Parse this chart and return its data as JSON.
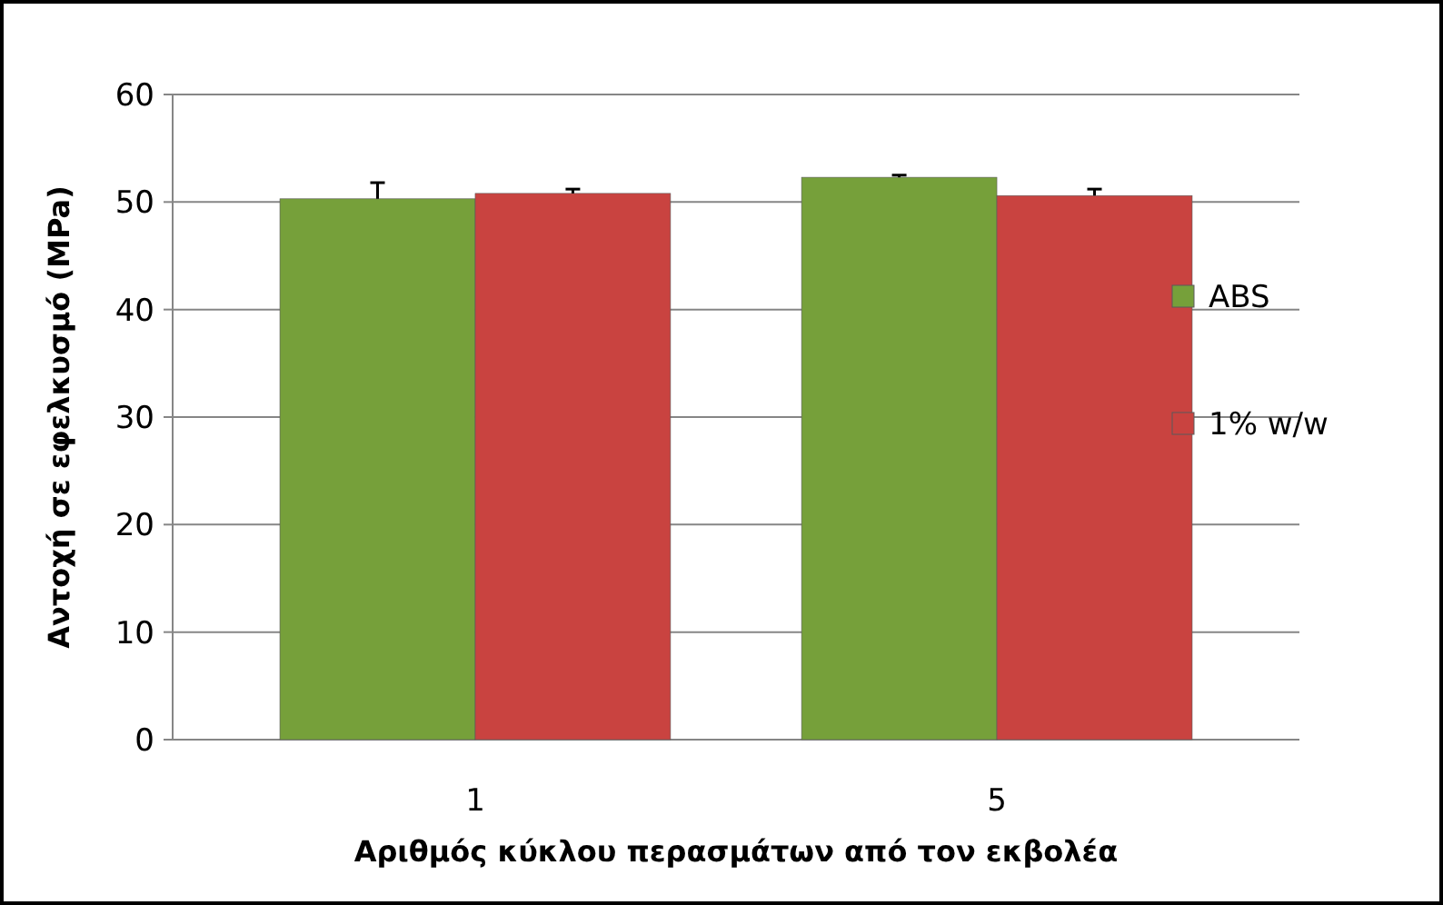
{
  "chart_data": {
    "type": "bar",
    "xlabel": "Αριθμός κύκλου περασμάτων από τον εκβολέα",
    "ylabel": "Αντοχή σε εφελκυσμό (MPa)",
    "categories": [
      "1",
      "5"
    ],
    "series": [
      {
        "name": "ABS",
        "color": "#76a03a",
        "values": [
          50.3,
          52.3
        ],
        "errors": [
          1.5,
          0.2
        ]
      },
      {
        "name": "1% w/w",
        "color": "#c94340",
        "values": [
          50.8,
          50.6
        ],
        "errors": [
          0.4,
          0.6
        ]
      }
    ],
    "ylim": [
      0,
      60
    ],
    "yticks": [
      0,
      10,
      20,
      30,
      40,
      50,
      60
    ],
    "grid": "y",
    "legend": "right"
  }
}
